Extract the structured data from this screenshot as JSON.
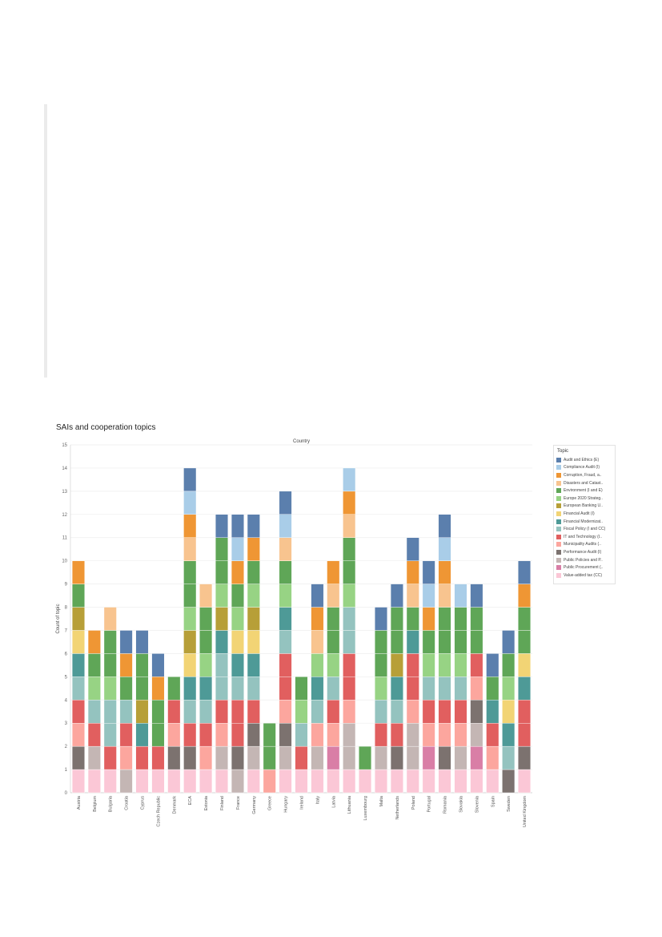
{
  "page": {
    "chart_title": "SAIs and cooperation topics"
  },
  "chart_data": {
    "type": "bar",
    "stacked": true,
    "title": "SAIs and cooperation topics",
    "top_axis_label": "Country",
    "ylabel": "Count of topic",
    "ylim": [
      0,
      15
    ],
    "yticks": [
      0,
      1,
      2,
      3,
      4,
      5,
      6,
      7,
      8,
      9,
      10,
      11,
      12,
      13,
      14,
      15
    ],
    "grid": true,
    "legend_position": "right",
    "legend_title": "Topic",
    "topics": [
      {
        "name": "Audit and Ethics (E)",
        "color": "#5b7fad"
      },
      {
        "name": "Compliance Audit (I)",
        "color": "#a9cde8"
      },
      {
        "name": "Corruption, Fraud, a..",
        "color": "#ef9634"
      },
      {
        "name": "Disasters and Catast..",
        "color": "#f8c48f"
      },
      {
        "name": "Environment (I and E)",
        "color": "#5fa657"
      },
      {
        "name": "Europe 2020 Strateg..",
        "color": "#97d384"
      },
      {
        "name": "European Banking U..",
        "color": "#b79f38"
      },
      {
        "name": "Financial Audit (I)",
        "color": "#f2d475"
      },
      {
        "name": "Financial Modernizat..",
        "color": "#4e9a97"
      },
      {
        "name": "Fiscal Policy (I and CC)",
        "color": "#94c3bf"
      },
      {
        "name": "IT and Technology (I..",
        "color": "#e15f5f"
      },
      {
        "name": "Municipality Audits (..",
        "color": "#fca69e"
      },
      {
        "name": "Performance Audit (I)",
        "color": "#7c726f"
      },
      {
        "name": "Public Policies and P..",
        "color": "#c4b6b4"
      },
      {
        "name": "Public Procurement (..",
        "color": "#d97ea6"
      },
      {
        "name": "Value-added tax (CC)",
        "color": "#fbc7d6"
      }
    ],
    "categories": [
      "Austria",
      "Belgium",
      "Bulgaria",
      "Croatia",
      "Cyprus",
      "Czech Republic",
      "Denmark",
      "ECA",
      "Estonia",
      "Finland",
      "France",
      "Germany",
      "Greece",
      "Hungary",
      "Ireland",
      "Italy",
      "Latvia",
      "Lithuania",
      "Luxembourg",
      "Malta",
      "Netherlands",
      "Poland",
      "Portugal",
      "Romania",
      "Slovakia",
      "Slovenia",
      "Spain",
      "Sweden",
      "United Kingdom"
    ],
    "stacks": [
      {
        "country": "Austria",
        "topics": [
          "Value-added tax (CC)",
          "Performance Audit (I)",
          "Municipality Audits (..",
          "IT and Technology (I..",
          "Fiscal Policy (I and CC)",
          "Financial Modernizat..",
          "Financial Audit (I)",
          "European Banking U..",
          "Environment (I and E)",
          "Corruption, Fraud, a.."
        ]
      },
      {
        "country": "Belgium",
        "topics": [
          "Value-added tax (CC)",
          "Public Policies and P..",
          "IT and Technology (I..",
          "Fiscal Policy (I and CC)",
          "Europe 2020 Strateg..",
          "Environment (I and E)",
          "Corruption, Fraud, a.."
        ]
      },
      {
        "country": "Bulgaria",
        "topics": [
          "Value-added tax (CC)",
          "IT and Technology (I..",
          "Fiscal Policy (I and CC)",
          "Fiscal Policy (I and CC)",
          "Europe 2020 Strateg..",
          "Environment (I and E)",
          "Environment (I and E)",
          "Disasters and Catast.."
        ]
      },
      {
        "country": "Croatia",
        "topics": [
          "Public Policies and P..",
          "Municipality Audits (..",
          "IT and Technology (I..",
          "Fiscal Policy (I and CC)",
          "Environment (I and E)",
          "Corruption, Fraud, a..",
          "Audit and Ethics (E)"
        ]
      },
      {
        "country": "Cyprus",
        "topics": [
          "Value-added tax (CC)",
          "IT and Technology (I..",
          "Financial Modernizat..",
          "European Banking U..",
          "Environment (I and E)",
          "Environment (I and E)",
          "Audit and Ethics (E)"
        ]
      },
      {
        "country": "Czech Republic",
        "topics": [
          "Value-added tax (CC)",
          "IT and Technology (I..",
          "Environment (I and E)",
          "Environment (I and E)",
          "Corruption, Fraud, a..",
          "Audit and Ethics (E)"
        ]
      },
      {
        "country": "Denmark",
        "topics": [
          "Value-added tax (CC)",
          "Performance Audit (I)",
          "Municipality Audits (..",
          "IT and Technology (I..",
          "Environment (I and E)"
        ]
      },
      {
        "country": "ECA",
        "topics": [
          "Value-added tax (CC)",
          "Performance Audit (I)",
          "IT and Technology (I..",
          "Fiscal Policy (I and CC)",
          "Financial Modernizat..",
          "Financial Audit (I)",
          "European Banking U..",
          "Europe 2020 Strateg..",
          "Environment (I and E)",
          "Environment (I and E)",
          "Disasters and Catast..",
          "Corruption, Fraud, a..",
          "Compliance Audit (I)",
          "Audit and Ethics (E)"
        ]
      },
      {
        "country": "Estonia",
        "topics": [
          "Value-added tax (CC)",
          "Municipality Audits (..",
          "IT and Technology (I..",
          "Fiscal Policy (I and CC)",
          "Financial Modernizat..",
          "Europe 2020 Strateg..",
          "Environment (I and E)",
          "Environment (I and E)",
          "Disasters and Catast.."
        ]
      },
      {
        "country": "Finland",
        "topics": [
          "Value-added tax (CC)",
          "Public Policies and P..",
          "Municipality Audits (..",
          "IT and Technology (I..",
          "Fiscal Policy (I and CC)",
          "Fiscal Policy (I and CC)",
          "Financial Modernizat..",
          "European Banking U..",
          "Europe 2020 Strateg..",
          "Environment (I and E)",
          "Environment (I and E)",
          "Audit and Ethics (E)"
        ]
      },
      {
        "country": "France",
        "topics": [
          "Public Policies and P..",
          "Performance Audit (I)",
          "IT and Technology (I..",
          "IT and Technology (I..",
          "Fiscal Policy (I and CC)",
          "Financial Modernizat..",
          "Financial Audit (I)",
          "Europe 2020 Strateg..",
          "Environment (I and E)",
          "Corruption, Fraud, a..",
          "Compliance Audit (I)",
          "Audit and Ethics (E)"
        ]
      },
      {
        "country": "Germany",
        "topics": [
          "Value-added tax (CC)",
          "Public Policies and P..",
          "Performance Audit (I)",
          "IT and Technology (I..",
          "Fiscal Policy (I and CC)",
          "Financial Modernizat..",
          "Financial Audit (I)",
          "European Banking U..",
          "Europe 2020 Strateg..",
          "Environment (I and E)",
          "Corruption, Fraud, a..",
          "Audit and Ethics (E)"
        ]
      },
      {
        "country": "Greece",
        "topics": [
          "Municipality Audits (..",
          "Environment (I and E)",
          "Environment (I and E)"
        ]
      },
      {
        "country": "Hungary",
        "topics": [
          "Value-added tax (CC)",
          "Public Policies and P..",
          "Performance Audit (I)",
          "Municipality Audits (..",
          "IT and Technology (I..",
          "IT and Technology (I..",
          "Fiscal Policy (I and CC)",
          "Financial Modernizat..",
          "Europe 2020 Strateg..",
          "Environment (I and E)",
          "Disasters and Catast..",
          "Compliance Audit (I)",
          "Audit and Ethics (E)"
        ]
      },
      {
        "country": "Ireland",
        "topics": [
          "Value-added tax (CC)",
          "IT and Technology (I..",
          "Fiscal Policy (I and CC)",
          "Europe 2020 Strateg..",
          "Environment (I and E)"
        ]
      },
      {
        "country": "Italy",
        "topics": [
          "Value-added tax (CC)",
          "Public Policies and P..",
          "Municipality Audits (..",
          "Fiscal Policy (I and CC)",
          "Financial Modernizat..",
          "Europe 2020 Strateg..",
          "Disasters and Catast..",
          "Corruption, Fraud, a..",
          "Audit and Ethics (E)"
        ]
      },
      {
        "country": "Latvia",
        "topics": [
          "Value-added tax (CC)",
          "Public Procurement (..",
          "Municipality Audits (..",
          "IT and Technology (I..",
          "Fiscal Policy (I and CC)",
          "Europe 2020 Strateg..",
          "Environment (I and E)",
          "Environment (I and E)",
          "Disasters and Catast..",
          "Corruption, Fraud, a.."
        ]
      },
      {
        "country": "Lithuania",
        "topics": [
          "Value-added tax (CC)",
          "Public Policies and P..",
          "Public Policies and P..",
          "Municipality Audits (..",
          "IT and Technology (I..",
          "IT and Technology (I..",
          "Fiscal Policy (I and CC)",
          "Fiscal Policy (I and CC)",
          "Europe 2020 Strateg..",
          "Environment (I and E)",
          "Environment (I and E)",
          "Disasters and Catast..",
          "Corruption, Fraud, a..",
          "Compliance Audit (I)"
        ]
      },
      {
        "country": "Luxembourg",
        "topics": [
          "Value-added tax (CC)",
          "Environment (I and E)"
        ]
      },
      {
        "country": "Malta",
        "topics": [
          "Value-added tax (CC)",
          "Public Policies and P..",
          "IT and Technology (I..",
          "Fiscal Policy (I and CC)",
          "Europe 2020 Strateg..",
          "Environment (I and E)",
          "Environment (I and E)",
          "Audit and Ethics (E)"
        ]
      },
      {
        "country": "Netherlands",
        "topics": [
          "Value-added tax (CC)",
          "Performance Audit (I)",
          "IT and Technology (I..",
          "Fiscal Policy (I and CC)",
          "Financial Modernizat..",
          "European Banking U..",
          "Environment (I and E)",
          "Environment (I and E)",
          "Audit and Ethics (E)"
        ]
      },
      {
        "country": "Poland",
        "topics": [
          "Value-added tax (CC)",
          "Public Policies and P..",
          "Public Policies and P..",
          "Municipality Audits (..",
          "IT and Technology (I..",
          "IT and Technology (I..",
          "Financial Modernizat..",
          "Environment (I and E)",
          "Disasters and Catast..",
          "Corruption, Fraud, a..",
          "Audit and Ethics (E)"
        ]
      },
      {
        "country": "Portugal",
        "topics": [
          "Value-added tax (CC)",
          "Public Procurement (..",
          "Municipality Audits (..",
          "IT and Technology (I..",
          "Fiscal Policy (I and CC)",
          "Europe 2020 Strateg..",
          "Environment (I and E)",
          "Corruption, Fraud, a..",
          "Compliance Audit (I)",
          "Audit and Ethics (E)"
        ]
      },
      {
        "country": "Romania",
        "topics": [
          "Value-added tax (CC)",
          "Performance Audit (I)",
          "Municipality Audits (..",
          "IT and Technology (I..",
          "Fiscal Policy (I and CC)",
          "Europe 2020 Strateg..",
          "Environment (I and E)",
          "Environment (I and E)",
          "Disasters and Catast..",
          "Corruption, Fraud, a..",
          "Compliance Audit (I)",
          "Audit and Ethics (E)"
        ]
      },
      {
        "country": "Slovakia",
        "topics": [
          "Value-added tax (CC)",
          "Public Policies and P..",
          "Municipality Audits (..",
          "IT and Technology (I..",
          "Fiscal Policy (I and CC)",
          "Europe 2020 Strateg..",
          "Environment (I and E)",
          "Environment (I and E)",
          "Compliance Audit (I)"
        ]
      },
      {
        "country": "Slovenia",
        "topics": [
          "Value-added tax (CC)",
          "Public Procurement (..",
          "Public Policies and P..",
          "Performance Audit (I)",
          "Municipality Audits (..",
          "IT and Technology (I..",
          "Environment (I and E)",
          "Environment (I and E)",
          "Audit and Ethics (E)"
        ]
      },
      {
        "country": "Spain",
        "topics": [
          "Value-added tax (CC)",
          "Municipality Audits (..",
          "IT and Technology (I..",
          "Financial Modernizat..",
          "Environment (I and E)",
          "Audit and Ethics (E)"
        ]
      },
      {
        "country": "Sweden",
        "topics": [
          "Performance Audit (I)",
          "Fiscal Policy (I and CC)",
          "Financial Modernizat..",
          "Financial Audit (I)",
          "Europe 2020 Strateg..",
          "Environment (I and E)",
          "Audit and Ethics (E)"
        ]
      },
      {
        "country": "United Kingdom",
        "topics": [
          "Value-added tax (CC)",
          "Performance Audit (I)",
          "IT and Technology (I..",
          "IT and Technology (I..",
          "Financial Modernizat..",
          "Financial Audit (I)",
          "Environment (I and E)",
          "Environment (I and E)",
          "Corruption, Fraud, a..",
          "Audit and Ethics (E)"
        ]
      }
    ]
  }
}
